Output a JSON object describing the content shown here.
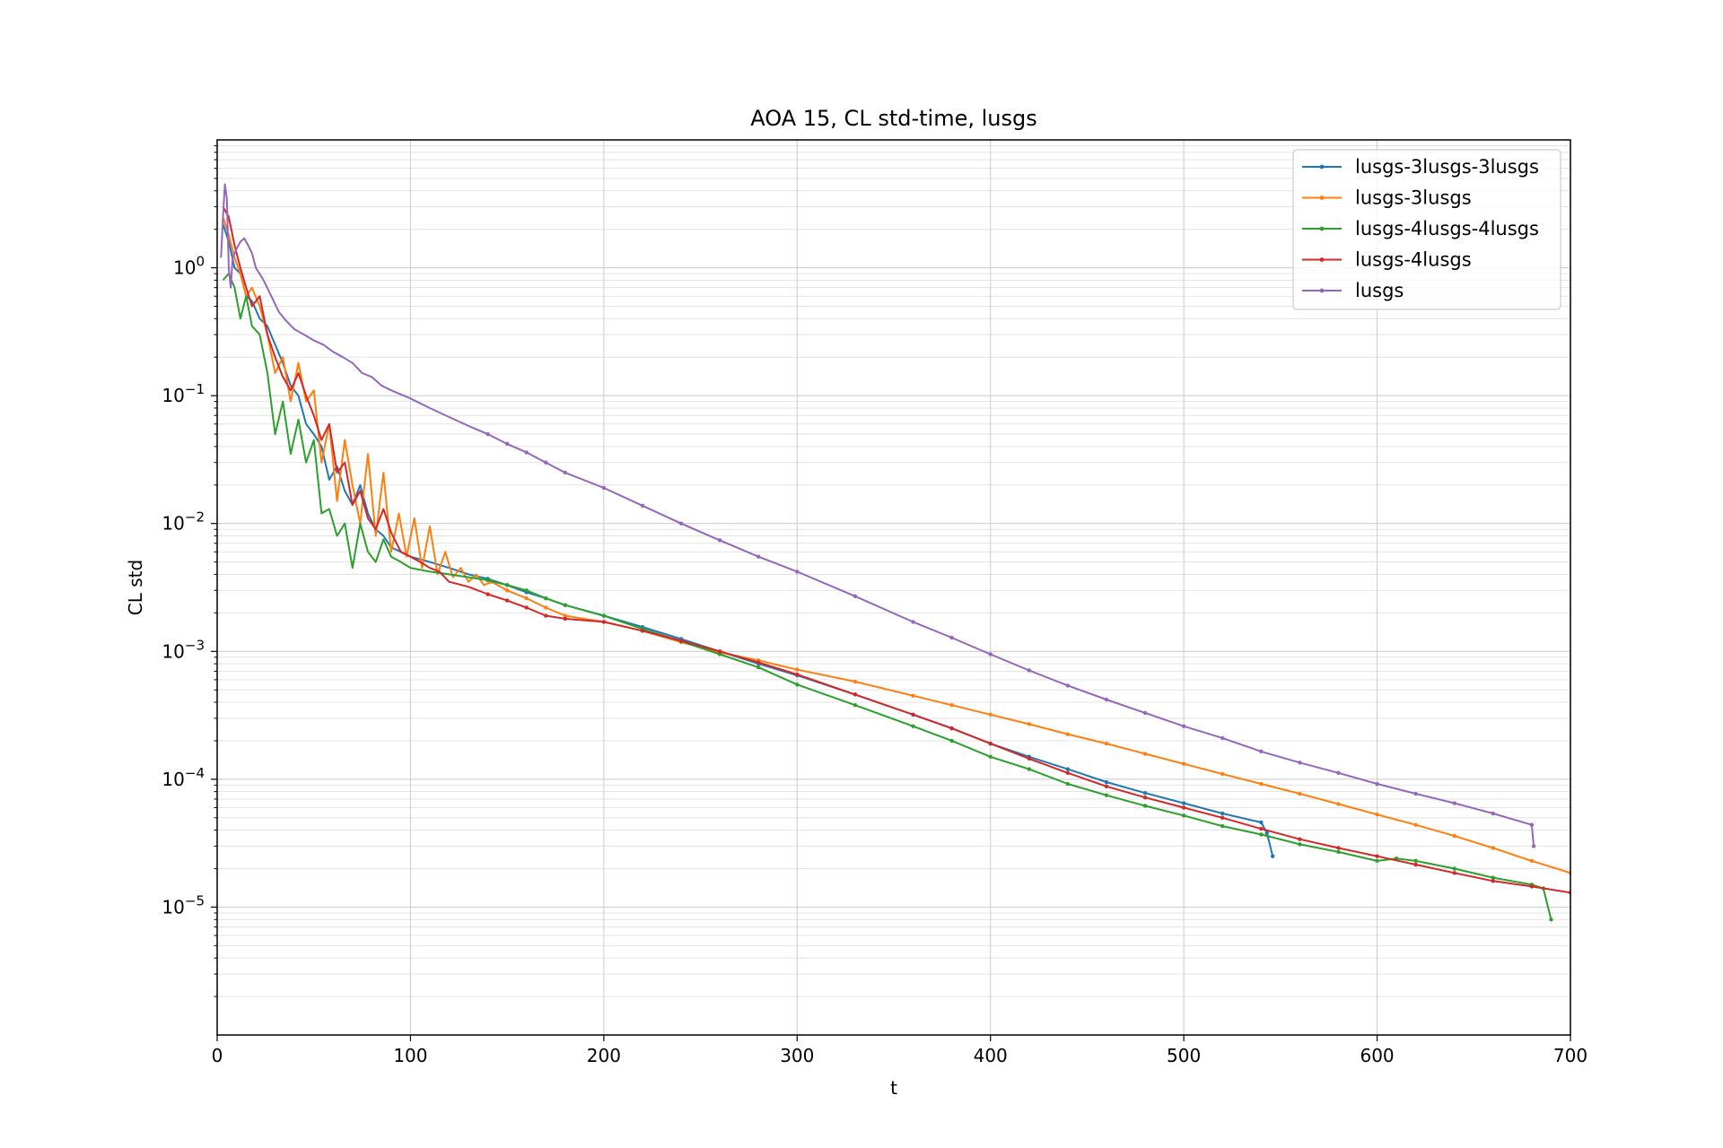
{
  "chart_data": {
    "type": "line",
    "title": "AOA 15, CL std-time, lusgs",
    "xlabel": "t",
    "ylabel": "CL std",
    "xlim": [
      0,
      700
    ],
    "ylim": [
      1e-06,
      10
    ],
    "yscale": "log",
    "grid": true,
    "legend_position": "top-right",
    "x_ticks": [
      0,
      100,
      200,
      300,
      400,
      500,
      600,
      700
    ],
    "y_ticks": [
      {
        "value": 1,
        "label": "10^0",
        "base": "10",
        "exp": "0"
      },
      {
        "value": 0.1,
        "label": "10^-1",
        "base": "10",
        "exp": "−1"
      },
      {
        "value": 0.01,
        "label": "10^-2",
        "base": "10",
        "exp": "−2"
      },
      {
        "value": 0.001,
        "label": "10^-3",
        "base": "10",
        "exp": "−3"
      },
      {
        "value": 0.0001,
        "label": "10^-4",
        "base": "10",
        "exp": "−4"
      },
      {
        "value": 1e-05,
        "label": "10^-5",
        "base": "10",
        "exp": "−5"
      }
    ],
    "series": [
      {
        "name": "lusgs-3lusgs-3lusgs",
        "color": "#1f77b4",
        "x": [
          3,
          6,
          9,
          12,
          15,
          18,
          22,
          26,
          30,
          34,
          38,
          42,
          46,
          50,
          54,
          58,
          62,
          66,
          70,
          74,
          78,
          82,
          86,
          90,
          95,
          100,
          110,
          120,
          130,
          140,
          150,
          160,
          170,
          180,
          200,
          220,
          240,
          260,
          280,
          300,
          330,
          360,
          380,
          400,
          420,
          440,
          460,
          480,
          500,
          520,
          540,
          543,
          546
        ],
        "y": [
          2.2,
          1.6,
          1.0,
          0.9,
          0.6,
          0.55,
          0.4,
          0.35,
          0.25,
          0.18,
          0.12,
          0.1,
          0.06,
          0.05,
          0.04,
          0.022,
          0.028,
          0.018,
          0.014,
          0.02,
          0.012,
          0.009,
          0.008,
          0.0065,
          0.006,
          0.0055,
          0.005,
          0.0045,
          0.004,
          0.0037,
          0.0033,
          0.0029,
          0.0026,
          0.0023,
          0.0019,
          0.00155,
          0.00125,
          0.001,
          0.0008,
          0.00065,
          0.00046,
          0.00032,
          0.00025,
          0.00019,
          0.00015,
          0.00012,
          9.5e-05,
          7.8e-05,
          6.5e-05,
          5.4e-05,
          4.6e-05,
          3.8e-05,
          2.5e-05
        ]
      },
      {
        "name": "lusgs-3lusgs",
        "color": "#ff7f0e",
        "x": [
          3,
          6,
          9,
          12,
          15,
          18,
          22,
          26,
          30,
          34,
          38,
          42,
          46,
          50,
          54,
          58,
          62,
          66,
          70,
          74,
          78,
          82,
          86,
          90,
          94,
          98,
          102,
          106,
          110,
          114,
          118,
          122,
          126,
          130,
          134,
          138,
          142,
          150,
          160,
          170,
          180,
          200,
          220,
          240,
          260,
          280,
          300,
          330,
          360,
          380,
          400,
          420,
          440,
          460,
          480,
          500,
          520,
          540,
          560,
          580,
          600,
          620,
          640,
          660,
          680,
          700
        ],
        "y": [
          2.5,
          1.8,
          1.2,
          0.9,
          0.6,
          0.7,
          0.5,
          0.3,
          0.15,
          0.2,
          0.09,
          0.18,
          0.09,
          0.11,
          0.03,
          0.06,
          0.015,
          0.045,
          0.02,
          0.01,
          0.035,
          0.008,
          0.025,
          0.006,
          0.012,
          0.0055,
          0.011,
          0.0045,
          0.0095,
          0.004,
          0.006,
          0.0038,
          0.0045,
          0.0035,
          0.004,
          0.0033,
          0.0035,
          0.003,
          0.0026,
          0.0022,
          0.0019,
          0.0017,
          0.00145,
          0.00118,
          0.00098,
          0.00085,
          0.00072,
          0.00058,
          0.00045,
          0.00038,
          0.00032,
          0.00027,
          0.000225,
          0.00019,
          0.000158,
          0.000132,
          0.00011,
          9.2e-05,
          7.7e-05,
          6.4e-05,
          5.3e-05,
          4.4e-05,
          3.6e-05,
          2.9e-05,
          2.3e-05,
          1.85e-05
        ]
      },
      {
        "name": "lusgs-4lusgs-4lusgs",
        "color": "#2ca02c",
        "x": [
          3,
          6,
          9,
          12,
          15,
          18,
          22,
          26,
          30,
          34,
          38,
          42,
          46,
          50,
          54,
          58,
          62,
          66,
          70,
          74,
          78,
          82,
          86,
          90,
          95,
          100,
          110,
          120,
          130,
          140,
          150,
          160,
          170,
          180,
          200,
          220,
          240,
          260,
          280,
          300,
          330,
          360,
          380,
          400,
          420,
          440,
          460,
          480,
          500,
          520,
          540,
          560,
          580,
          600,
          610,
          620,
          640,
          660,
          680,
          686,
          690
        ],
        "y": [
          0.8,
          0.9,
          0.7,
          0.4,
          0.6,
          0.35,
          0.3,
          0.15,
          0.05,
          0.09,
          0.035,
          0.065,
          0.03,
          0.045,
          0.012,
          0.013,
          0.008,
          0.01,
          0.0045,
          0.01,
          0.006,
          0.005,
          0.0075,
          0.0055,
          0.005,
          0.0045,
          0.0042,
          0.004,
          0.0038,
          0.0036,
          0.0033,
          0.003,
          0.0026,
          0.0023,
          0.0019,
          0.0015,
          0.0012,
          0.00095,
          0.00075,
          0.00055,
          0.00038,
          0.00026,
          0.0002,
          0.00015,
          0.00012,
          9.2e-05,
          7.5e-05,
          6.2e-05,
          5.2e-05,
          4.3e-05,
          3.7e-05,
          3.1e-05,
          2.7e-05,
          2.3e-05,
          2.4e-05,
          2.3e-05,
          2e-05,
          1.7e-05,
          1.5e-05,
          1.4e-05,
          8e-06
        ]
      },
      {
        "name": "lusgs-4lusgs",
        "color": "#d62728",
        "x": [
          3,
          6,
          9,
          12,
          15,
          18,
          22,
          26,
          30,
          34,
          38,
          42,
          46,
          50,
          54,
          58,
          62,
          66,
          70,
          74,
          78,
          82,
          86,
          90,
          95,
          100,
          105,
          110,
          115,
          120,
          130,
          140,
          150,
          160,
          170,
          180,
          200,
          220,
          240,
          260,
          280,
          300,
          330,
          360,
          380,
          400,
          420,
          440,
          460,
          480,
          500,
          520,
          540,
          560,
          580,
          600,
          620,
          640,
          660,
          680,
          700
        ],
        "y": [
          3.0,
          2.5,
          1.5,
          1.0,
          0.7,
          0.5,
          0.6,
          0.3,
          0.2,
          0.14,
          0.11,
          0.15,
          0.1,
          0.07,
          0.045,
          0.06,
          0.025,
          0.03,
          0.014,
          0.018,
          0.011,
          0.009,
          0.013,
          0.0085,
          0.006,
          0.0055,
          0.005,
          0.0045,
          0.0042,
          0.0035,
          0.0032,
          0.0028,
          0.0025,
          0.0022,
          0.0019,
          0.0018,
          0.0017,
          0.00145,
          0.00121,
          0.001,
          0.00082,
          0.00066,
          0.00046,
          0.00032,
          0.00025,
          0.00019,
          0.000145,
          0.000112,
          8.8e-05,
          7.2e-05,
          6e-05,
          5e-05,
          4.1e-05,
          3.4e-05,
          2.9e-05,
          2.5e-05,
          2.15e-05,
          1.85e-05,
          1.6e-05,
          1.45e-05,
          1.3e-05
        ]
      },
      {
        "name": "lusgs",
        "color": "#9467bd",
        "x": [
          2,
          3,
          4,
          5,
          6,
          7,
          8,
          10,
          12,
          14,
          16,
          18,
          20,
          24,
          28,
          32,
          36,
          40,
          45,
          50,
          55,
          60,
          65,
          70,
          75,
          80,
          85,
          90,
          100,
          110,
          120,
          130,
          140,
          150,
          160,
          170,
          180,
          200,
          220,
          240,
          260,
          280,
          300,
          330,
          360,
          380,
          400,
          420,
          440,
          460,
          480,
          500,
          520,
          540,
          560,
          580,
          600,
          620,
          640,
          660,
          680,
          681
        ],
        "y": [
          1.2,
          2.5,
          4.5,
          3.5,
          1.0,
          0.7,
          1.2,
          1.4,
          1.6,
          1.7,
          1.5,
          1.3,
          1.0,
          0.8,
          0.6,
          0.45,
          0.38,
          0.33,
          0.3,
          0.27,
          0.25,
          0.22,
          0.2,
          0.18,
          0.15,
          0.14,
          0.12,
          0.11,
          0.095,
          0.08,
          0.068,
          0.058,
          0.05,
          0.042,
          0.036,
          0.03,
          0.025,
          0.019,
          0.0138,
          0.01,
          0.0074,
          0.0055,
          0.0042,
          0.0027,
          0.0017,
          0.00128,
          0.00095,
          0.00071,
          0.00054,
          0.00042,
          0.00033,
          0.00026,
          0.00021,
          0.000165,
          0.000135,
          0.000112,
          9.2e-05,
          7.7e-05,
          6.5e-05,
          5.4e-05,
          4.4e-05,
          3e-05
        ]
      }
    ]
  }
}
